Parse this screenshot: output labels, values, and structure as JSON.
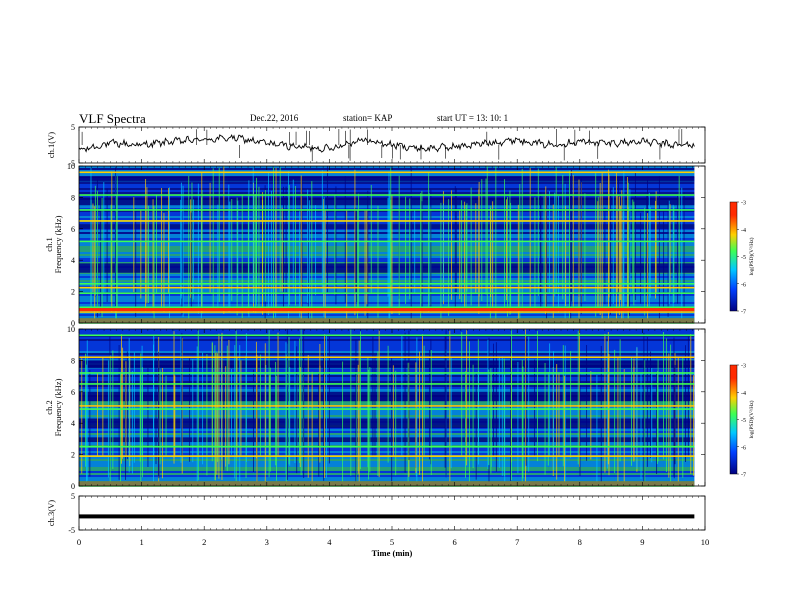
{
  "header": {
    "title": "VLF Spectra",
    "date": "Dec.22, 2016",
    "station": "station= KAP",
    "start": "start  UT =   13: 10: 1"
  },
  "colorbar": {
    "label": "log(PSD)(V²/Hz)",
    "ticks": [
      "-3",
      "-4",
      "-5",
      "-6",
      "-7"
    ],
    "colors": [
      "#ff2a00",
      "#ffd000",
      "#3cff55",
      "#00c8ff",
      "#0040ff",
      "#000080"
    ]
  },
  "chart_data": [
    {
      "type": "line",
      "panel": "ch1-waveform",
      "ylabel": "ch.1(V)",
      "ylim": [
        -5,
        5
      ],
      "yticks": [
        "5",
        "-5"
      ],
      "xlim": [
        0,
        10
      ],
      "series": [
        {
          "x": [
            0,
            0.5,
            1,
            1.5,
            2,
            2.5,
            3,
            3.5,
            4,
            4.5,
            5,
            5.5,
            6,
            6.5,
            7,
            7.5,
            8,
            8.5,
            9,
            9.5,
            9.8
          ],
          "values": [
            -1.5,
            0.5,
            0,
            1.0,
            1.5,
            2.0,
            0.5,
            -0.5,
            -1.0,
            1.5,
            0,
            -1.0,
            -0.5,
            0.5,
            1.5,
            0,
            1.0,
            0.5,
            1.0,
            0,
            0
          ]
        }
      ]
    },
    {
      "type": "heatmap",
      "panel": "ch1-spectrogram",
      "ylabel": "ch.1\nFrequency (kHz)",
      "ylim": [
        0,
        10
      ],
      "yticks": [
        "0",
        "2",
        "4",
        "6",
        "8",
        "10"
      ],
      "xlim": [
        0,
        10
      ],
      "zlim": [
        -7,
        -3
      ],
      "narrowband_khz": [
        0.7,
        1.0,
        1.9,
        2.25,
        2.5,
        5.2,
        6.5,
        7.2,
        8.15,
        9.6
      ],
      "quiet_bands_khz": [
        [
          3.2,
          3.8
        ],
        [
          7.5,
          8.0
        ],
        [
          9.0,
          9.3
        ],
        [
          6.0,
          6.3
        ]
      ]
    },
    {
      "type": "heatmap",
      "panel": "ch2-spectrogram",
      "ylabel": "ch.2\nFrequency (kHz)",
      "ylim": [
        0,
        10
      ],
      "yticks": [
        "0",
        "2",
        "4",
        "6",
        "8",
        "10"
      ],
      "xlim": [
        0,
        10
      ],
      "zlim": [
        -7,
        -3
      ],
      "narrowband_khz": [
        1.9,
        2.5,
        4.9,
        5.1,
        6.5,
        7.2,
        8.2,
        9.6
      ],
      "quiet_bands_khz": [
        [
          3.7,
          4.3
        ],
        [
          5.4,
          6.0
        ],
        [
          7.5,
          8.0
        ],
        [
          2.8,
          3.1
        ]
      ]
    },
    {
      "type": "line",
      "panel": "ch3-waveform",
      "ylabel": "ch.3(V)",
      "ylim": [
        -5,
        5
      ],
      "yticks": [
        "5",
        "-5"
      ],
      "xlim": [
        0,
        10
      ],
      "series": [
        {
          "x": [
            0,
            9.8
          ],
          "values": [
            -1,
            -1
          ]
        }
      ]
    }
  ],
  "xaxis": {
    "label": "Time  (min)",
    "ticks": [
      "0",
      "1",
      "2",
      "3",
      "4",
      "5",
      "6",
      "7",
      "8",
      "9",
      "10"
    ]
  }
}
